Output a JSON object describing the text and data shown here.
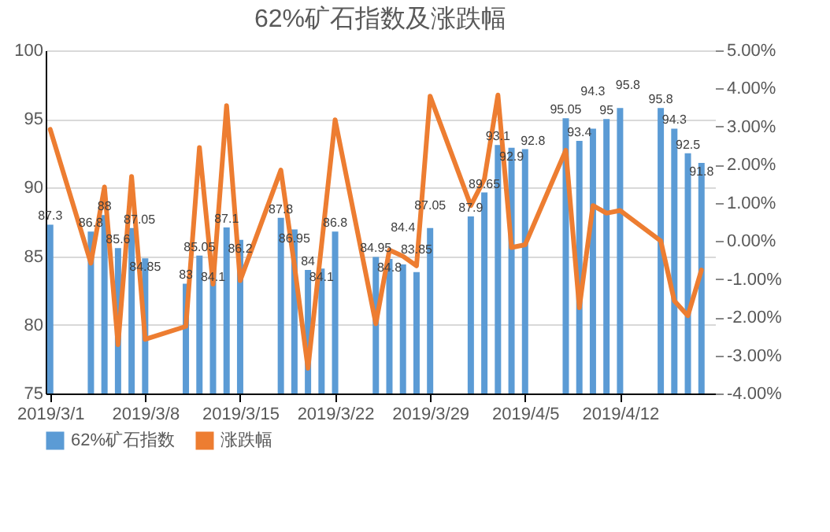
{
  "chart_data": {
    "type": "bar",
    "title": "62%矿石指数及涨跌幅",
    "x": [
      "2019-03-01",
      "2019-03-04",
      "2019-03-05",
      "2019-03-06",
      "2019-03-07",
      "2019-03-08",
      "2019-03-11",
      "2019-03-12",
      "2019-03-13",
      "2019-03-14",
      "2019-03-15",
      "2019-03-18",
      "2019-03-19",
      "2019-03-20",
      "2019-03-21",
      "2019-03-22",
      "2019-03-25",
      "2019-03-26",
      "2019-03-27",
      "2019-03-28",
      "2019-03-29",
      "2019-04-01",
      "2019-04-02",
      "2019-04-03",
      "2019-04-04",
      "2019-04-05",
      "2019-04-08",
      "2019-04-09",
      "2019-04-10",
      "2019-04-11",
      "2019-04-12",
      "2019-04-15",
      "2019-04-16",
      "2019-04-17",
      "2019-04-18"
    ],
    "series": [
      {
        "name": "62%矿石指数",
        "type": "bar",
        "color": "#5b9bd5",
        "values": [
          87.3,
          86.8,
          88,
          85.6,
          87.05,
          84.85,
          83,
          85.05,
          84.1,
          87.1,
          86.2,
          87.8,
          86.95,
          84,
          84.1,
          86.8,
          84.95,
          84.8,
          84.4,
          83.85,
          87.05,
          87.9,
          89.65,
          93.1,
          92.9,
          92.8,
          95.05,
          93.4,
          94.3,
          95,
          95.8,
          95.8,
          94.3,
          92.5,
          91.8
        ],
        "value_labels": [
          "87.3",
          "86.8",
          "88",
          "85.6",
          "87.05",
          "84.85",
          "83",
          "85.05",
          "84.1",
          "87.1",
          "86.2",
          "87.8",
          "86.95",
          "84",
          "84.1",
          "86.8",
          "84.95",
          "84.8",
          "84.4",
          "83.85",
          "87.05",
          "87.9",
          "89.65",
          "93.1",
          "92.9",
          "92.8",
          "95.05",
          "93.4",
          "94.3",
          "95",
          "95.8",
          "95.8",
          "94.3",
          "92.5",
          "91.8"
        ]
      },
      {
        "name": "涨跌幅",
        "type": "line",
        "axis": "y2",
        "color": "#ed7d31",
        "values": [
          2.93,
          -0.58,
          1.42,
          -2.72,
          1.69,
          -2.58,
          -2.24,
          2.45,
          -1.13,
          3.55,
          -1.04,
          1.86,
          -0.64,
          -3.34,
          -0.1,
          3.18,
          -2.17,
          -0.24,
          -0.4,
          -0.65,
          3.8,
          0.93,
          1.62,
          3.83,
          -0.17,
          -0.1,
          2.38,
          -1.75,
          0.93,
          0.73,
          0.8,
          0,
          -1.57,
          -1.96,
          -0.76
        ]
      }
    ],
    "xlim": [
      "2019-02-28T16:00",
      "2019-04-19"
    ],
    "xticks": [
      {
        "value": "2019-03-01",
        "label": "2019/3/1"
      },
      {
        "value": "2019-03-08",
        "label": "2019/3/8"
      },
      {
        "value": "2019-03-15",
        "label": "2019/3/15"
      },
      {
        "value": "2019-03-22",
        "label": "2019/3/22"
      },
      {
        "value": "2019-03-29",
        "label": "2019/3/29"
      },
      {
        "value": "2019-04-05",
        "label": "2019/4/5"
      },
      {
        "value": "2019-04-12",
        "label": "2019/4/12"
      }
    ],
    "ylim": [
      75,
      100
    ],
    "yticks": [
      75,
      80,
      85,
      90,
      95,
      100
    ],
    "y2lim": [
      -4,
      5
    ],
    "y2ticks": [
      {
        "value": -4,
        "label": "-4.00%"
      },
      {
        "value": -3,
        "label": "-3.00%"
      },
      {
        "value": -2,
        "label": "-2.00%"
      },
      {
        "value": -1,
        "label": "-1.00%"
      },
      {
        "value": 0,
        "label": "0.00%"
      },
      {
        "value": 1,
        "label": "1.00%"
      },
      {
        "value": 2,
        "label": "2.00%"
      },
      {
        "value": 3,
        "label": "3.00%"
      },
      {
        "value": 4,
        "label": "4.00%"
      },
      {
        "value": 5,
        "label": "5.00%"
      }
    ],
    "grid": "y",
    "legend": "bottom",
    "marker": "none",
    "line_style": "solid"
  }
}
